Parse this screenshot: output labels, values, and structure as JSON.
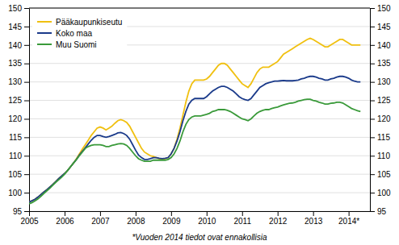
{
  "chart_data": {
    "type": "line",
    "subtitle": "*Vuoden 2014 tiedot ovat ennakollisia",
    "x": [
      2005,
      2005.0833,
      2005.1667,
      2005.25,
      2005.3333,
      2005.4167,
      2005.5,
      2005.5833,
      2005.6667,
      2005.75,
      2005.8333,
      2005.9167,
      2006,
      2006.0833,
      2006.1667,
      2006.25,
      2006.3333,
      2006.4167,
      2006.5,
      2006.5833,
      2006.6667,
      2006.75,
      2006.8333,
      2006.9167,
      2007,
      2007.0833,
      2007.1667,
      2007.25,
      2007.3333,
      2007.4167,
      2007.5,
      2007.5833,
      2007.6667,
      2007.75,
      2007.8333,
      2007.9167,
      2008,
      2008.0833,
      2008.1667,
      2008.25,
      2008.3333,
      2008.4167,
      2008.5,
      2008.5833,
      2008.6667,
      2008.75,
      2008.8333,
      2008.9167,
      2009,
      2009.0833,
      2009.1667,
      2009.25,
      2009.3333,
      2009.4167,
      2009.5,
      2009.5833,
      2009.6667,
      2009.75,
      2009.8333,
      2009.9167,
      2010,
      2010.0833,
      2010.1667,
      2010.25,
      2010.3333,
      2010.4167,
      2010.5,
      2010.5833,
      2010.6667,
      2010.75,
      2010.8333,
      2010.9167,
      2011,
      2011.0833,
      2011.1667,
      2011.25,
      2011.3333,
      2011.4167,
      2011.5,
      2011.5833,
      2011.6667,
      2011.75,
      2011.8333,
      2011.9167,
      2012,
      2012.0833,
      2012.1667,
      2012.25,
      2012.3333,
      2012.4167,
      2012.5,
      2012.5833,
      2012.6667,
      2012.75,
      2012.8333,
      2012.9167,
      2013,
      2013.0833,
      2013.1667,
      2013.25,
      2013.3333,
      2013.4167,
      2013.5,
      2013.5833,
      2013.6667,
      2013.75,
      2013.8333,
      2013.9167,
      2014,
      2014.0833,
      2014.1667,
      2014.25,
      2014.3333
    ],
    "series": [
      {
        "name": "Pääkaupunkiseutu",
        "color": "#f0c010",
        "values": [
          97.5,
          97.8,
          98.2,
          98.8,
          99.5,
          100.2,
          100.8,
          101.5,
          102.2,
          103.0,
          103.8,
          104.5,
          105.2,
          106.0,
          107.0,
          108.0,
          109.2,
          110.5,
          111.8,
          113.0,
          114.2,
          115.5,
          116.5,
          117.5,
          117.8,
          117.5,
          117.0,
          117.5,
          118.0,
          118.8,
          119.5,
          119.8,
          119.5,
          119.0,
          118.0,
          116.5,
          115.0,
          113.5,
          112.0,
          111.0,
          110.5,
          110.0,
          109.8,
          109.5,
          109.2,
          109.0,
          109.2,
          109.5,
          110.5,
          112.0,
          114.5,
          117.5,
          121.0,
          124.5,
          127.5,
          129.5,
          130.5,
          130.5,
          130.5,
          130.5,
          130.8,
          131.5,
          132.5,
          133.5,
          134.5,
          135.0,
          135.0,
          134.5,
          133.5,
          132.5,
          131.5,
          130.5,
          129.5,
          129.0,
          128.5,
          129.5,
          131.0,
          132.5,
          133.5,
          134.0,
          134.0,
          134.0,
          134.5,
          135.0,
          135.5,
          136.5,
          137.5,
          138.0,
          138.5,
          139.0,
          139.5,
          140.0,
          140.5,
          141.0,
          141.5,
          141.8,
          141.5,
          141.0,
          140.5,
          140.0,
          139.5,
          139.5,
          140.0,
          140.5,
          141.0,
          141.5,
          141.5,
          141.0,
          140.5,
          140.0,
          140.0,
          140.0,
          140.0
        ]
      },
      {
        "name": "Koko maa",
        "color": "#1a3a8a",
        "values": [
          97.5,
          97.8,
          98.2,
          98.8,
          99.5,
          100.2,
          100.8,
          101.5,
          102.2,
          103.0,
          103.8,
          104.5,
          105.2,
          106.0,
          107.0,
          108.0,
          109.0,
          110.2,
          111.2,
          112.2,
          113.2,
          114.2,
          115.0,
          115.5,
          115.5,
          115.2,
          115.0,
          115.2,
          115.5,
          115.8,
          116.2,
          116.3,
          116.0,
          115.5,
          114.5,
          113.0,
          111.5,
          110.2,
          109.5,
          109.0,
          109.0,
          109.2,
          109.5,
          109.5,
          109.3,
          109.2,
          109.3,
          109.5,
          110.5,
          112.0,
          114.0,
          116.5,
          119.5,
          122.0,
          124.0,
          125.0,
          125.5,
          125.5,
          125.5,
          125.5,
          126.0,
          126.8,
          127.5,
          128.0,
          128.5,
          128.8,
          128.8,
          128.5,
          128.0,
          127.5,
          126.8,
          126.0,
          125.5,
          125.2,
          125.0,
          125.5,
          126.5,
          127.5,
          128.5,
          129.0,
          129.5,
          129.8,
          130.0,
          130.2,
          130.2,
          130.3,
          130.4,
          130.3,
          130.3,
          130.3,
          130.4,
          130.5,
          130.8,
          131.0,
          131.3,
          131.5,
          131.5,
          131.3,
          131.0,
          130.8,
          130.5,
          130.5,
          130.8,
          131.0,
          131.3,
          131.5,
          131.5,
          131.3,
          131.0,
          130.5,
          130.2,
          130.0,
          130.0
        ]
      },
      {
        "name": "Muu Suomi",
        "color": "#3a9a3a",
        "values": [
          97.0,
          97.3,
          97.8,
          98.3,
          99.0,
          99.8,
          100.5,
          101.2,
          102.0,
          102.8,
          103.5,
          104.2,
          105.0,
          106.0,
          107.0,
          108.0,
          109.0,
          110.0,
          111.0,
          112.0,
          112.5,
          112.8,
          113.0,
          113.0,
          113.0,
          112.8,
          112.5,
          112.5,
          112.8,
          113.0,
          113.2,
          113.3,
          113.2,
          112.8,
          112.0,
          111.0,
          110.0,
          109.2,
          108.8,
          108.5,
          108.5,
          108.5,
          108.8,
          108.8,
          108.8,
          108.8,
          108.8,
          109.0,
          109.5,
          110.5,
          112.0,
          114.0,
          116.5,
          118.5,
          119.8,
          120.5,
          120.8,
          120.8,
          120.8,
          121.0,
          121.2,
          121.5,
          122.0,
          122.2,
          122.5,
          122.5,
          122.5,
          122.3,
          122.0,
          121.5,
          121.0,
          120.5,
          120.0,
          119.8,
          119.5,
          120.0,
          120.8,
          121.5,
          122.0,
          122.3,
          122.5,
          122.5,
          122.8,
          123.0,
          123.2,
          123.5,
          123.8,
          124.0,
          124.2,
          124.3,
          124.5,
          124.8,
          125.0,
          125.2,
          125.3,
          125.3,
          125.0,
          124.8,
          124.5,
          124.3,
          124.0,
          124.0,
          124.2,
          124.3,
          124.5,
          124.5,
          124.3,
          123.8,
          123.3,
          122.8,
          122.5,
          122.2,
          122.0
        ]
      }
    ],
    "xlim": [
      2005,
      2014.6
    ],
    "xticks": [
      2005,
      2006,
      2007,
      2008,
      2009,
      2010,
      2011,
      2012,
      2013,
      {
        "value": 2014,
        "label": "2014*"
      }
    ],
    "ylim": [
      95,
      150
    ],
    "yticks": [
      95,
      100,
      105,
      110,
      115,
      120,
      125,
      130,
      135,
      140,
      145,
      150
    ],
    "y2lim": [
      95,
      150
    ],
    "y2ticks": [
      95,
      100,
      105,
      110,
      115,
      120,
      125,
      130,
      135,
      140,
      145,
      150
    ],
    "grid": true,
    "legend": "top-left"
  }
}
